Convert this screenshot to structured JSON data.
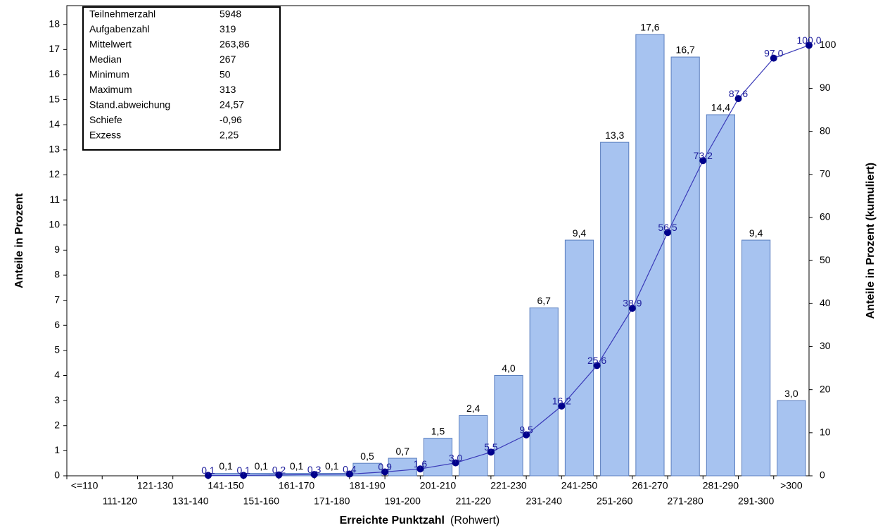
{
  "chart_data": {
    "type": "bar-line",
    "x_label": "Erreichte Punktzahl",
    "x_label_note": "(Rohwert)",
    "y_label": "Anteile in Prozent",
    "y2_label": "Anteile in Prozent (kumuliert)",
    "categories": [
      "<=110",
      "111-120",
      "121-130",
      "131-140",
      "141-150",
      "151-160",
      "161-170",
      "171-180",
      "181-190",
      "191-200",
      "201-210",
      "211-220",
      "221-230",
      "231-240",
      "241-250",
      "251-260",
      "261-270",
      "271-280",
      "281-290",
      "291-300",
      ">300"
    ],
    "series": [
      {
        "type": "bar",
        "color": "#a7c3f0",
        "edge_color": "#5b7fbf",
        "values": [
          null,
          null,
          null,
          null,
          0.1,
          0.1,
          0.1,
          0.1,
          0.5,
          0.7,
          1.5,
          2.4,
          4.0,
          6.7,
          9.4,
          13.3,
          17.6,
          16.7,
          14.4,
          9.4,
          3.0
        ],
        "value_labels": [
          null,
          null,
          null,
          null,
          "0,1",
          "0,1",
          "0,1",
          "0,1",
          "0,5",
          "0,7",
          "1,5",
          "2,4",
          "4,0",
          "6,7",
          "9,4",
          "13,3",
          "17,6",
          "16,7",
          "14,4",
          "9,4",
          "3,0"
        ]
      },
      {
        "type": "line",
        "axis": "y2",
        "color": "#3a3ab8",
        "marker_color": "#00008b",
        "label_color": "#1c1c9c",
        "values": [
          null,
          null,
          null,
          0.1,
          0.1,
          0.2,
          0.3,
          0.4,
          0.9,
          1.6,
          3.0,
          5.5,
          9.5,
          16.2,
          25.6,
          38.9,
          56.5,
          73.2,
          87.6,
          97.0,
          100.0
        ],
        "value_labels": [
          null,
          null,
          null,
          "0,1",
          "0,1",
          "0,2",
          "0,3",
          "0,4",
          "0,9",
          "1,6",
          "3,0",
          "5,5",
          "9,5",
          "16,2",
          "25,6",
          "38,9",
          "56,5",
          "73,2",
          "87,6",
          "97,0",
          "100,0"
        ]
      }
    ],
    "ylim": [
      0,
      18.75
    ],
    "yticks": [
      0,
      1,
      2,
      3,
      4,
      5,
      6,
      7,
      8,
      9,
      10,
      11,
      12,
      13,
      14,
      15,
      16,
      17,
      18
    ],
    "y2lim": [
      0,
      109.2
    ],
    "y2ticks": [
      0,
      10,
      20,
      30,
      40,
      50,
      60,
      70,
      80,
      90,
      100
    ],
    "stats": [
      [
        "Teilnehmerzahl",
        "5948"
      ],
      [
        "Aufgabenzahl",
        "319"
      ],
      [
        "Mittelwert",
        "263,86"
      ],
      [
        "Median",
        "267"
      ],
      [
        "Minimum",
        "50"
      ],
      [
        "Maximum",
        "313"
      ],
      [
        "Stand.abweichung",
        "24,57"
      ],
      [
        "Schiefe",
        "-0,96"
      ],
      [
        "Exzess",
        "2,25"
      ]
    ]
  }
}
